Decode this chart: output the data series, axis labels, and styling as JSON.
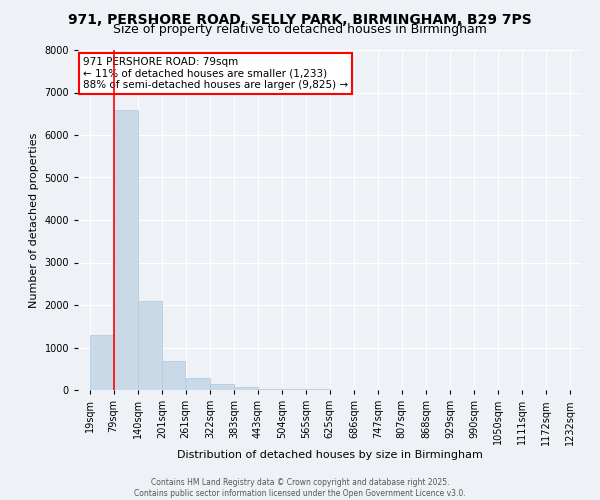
{
  "title1": "971, PERSHORE ROAD, SELLY PARK, BIRMINGHAM, B29 7PS",
  "title2": "Size of property relative to detached houses in Birmingham",
  "xlabel": "Distribution of detached houses by size in Birmingham",
  "ylabel": "Number of detached properties",
  "bins": [
    19,
    79,
    140,
    201,
    261,
    322,
    383,
    443,
    504,
    565,
    625,
    686,
    747,
    807,
    868,
    929,
    990,
    1050,
    1111,
    1172,
    1232
  ],
  "bar_heights": [
    1300,
    6600,
    2100,
    680,
    280,
    150,
    80,
    30,
    20,
    15,
    10,
    5,
    5,
    5,
    5,
    5,
    5,
    5,
    5,
    5
  ],
  "bar_color": "#c9d9e8",
  "bar_edge_color": "#b0c8dc",
  "property_line_x": 79,
  "property_line_color": "red",
  "annotation_text": "971 PERSHORE ROAD: 79sqm\n← 11% of detached houses are smaller (1,233)\n88% of semi-detached houses are larger (9,825) →",
  "annotation_box_color": "red",
  "annotation_text_color": "black",
  "ylim": [
    0,
    8000
  ],
  "yticks": [
    0,
    1000,
    2000,
    3000,
    4000,
    5000,
    6000,
    7000,
    8000
  ],
  "background_color": "#eef2f7",
  "plot_background_color": "#eef2f7",
  "grid_color": "#ffffff",
  "footer1": "Contains HM Land Registry data © Crown copyright and database right 2025.",
  "footer2": "Contains public sector information licensed under the Open Government Licence v3.0.",
  "title_fontsize": 10,
  "subtitle_fontsize": 9,
  "axis_label_fontsize": 8,
  "tick_fontsize": 7,
  "annotation_fontsize": 7.5
}
